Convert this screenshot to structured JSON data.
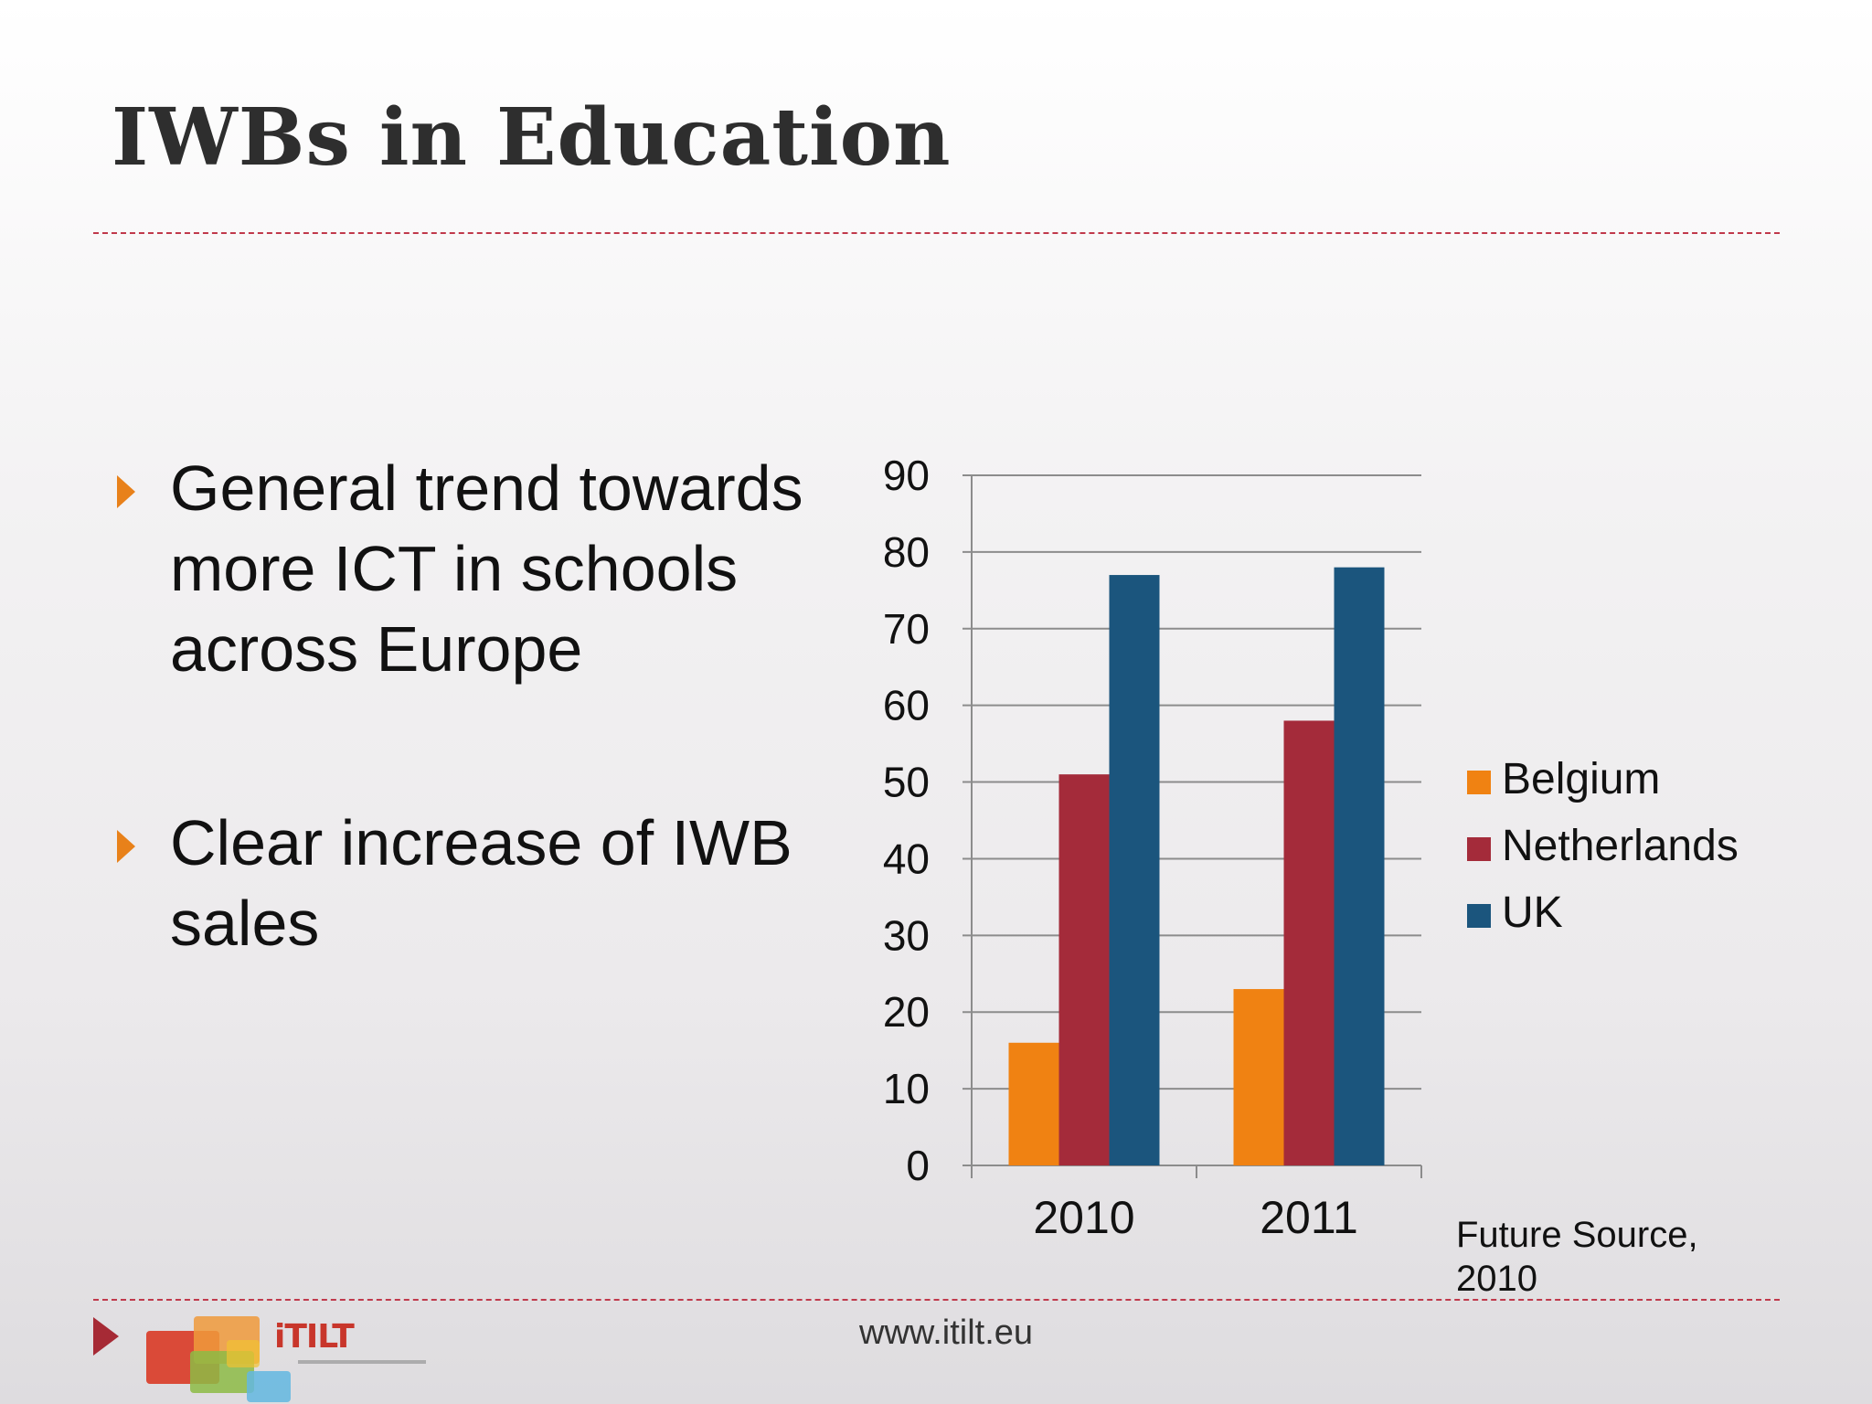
{
  "slide": {
    "title": "IWBs in Education",
    "bullets": [
      "General trend towards more ICT in schools across Europe",
      "Clear increase of IWB sales"
    ],
    "source": "Future Source, 2010",
    "footer_url": "www.itilt.eu",
    "logo_text": "iTILT"
  },
  "colors": {
    "title": "#2e2e2e",
    "divider": "#c0394b",
    "bullet_marker": "#e8811a",
    "footer_arrow": "#a62a35",
    "gridline": "#8c8c8c"
  },
  "chart_data": {
    "type": "bar",
    "categories": [
      "2010",
      "2011"
    ],
    "series": [
      {
        "name": "Belgium",
        "values": [
          16,
          23
        ],
        "color": "#f08212"
      },
      {
        "name": "Netherlands",
        "values": [
          51,
          58
        ],
        "color": "#a42b3a"
      },
      {
        "name": "UK",
        "values": [
          77,
          78
        ],
        "color": "#1b557d"
      }
    ],
    "title": "",
    "xlabel": "",
    "ylabel": "",
    "ylim": [
      0,
      90
    ],
    "yticks": [
      0,
      10,
      20,
      30,
      40,
      50,
      60,
      70,
      80,
      90
    ],
    "grid": true,
    "legend": "right"
  }
}
